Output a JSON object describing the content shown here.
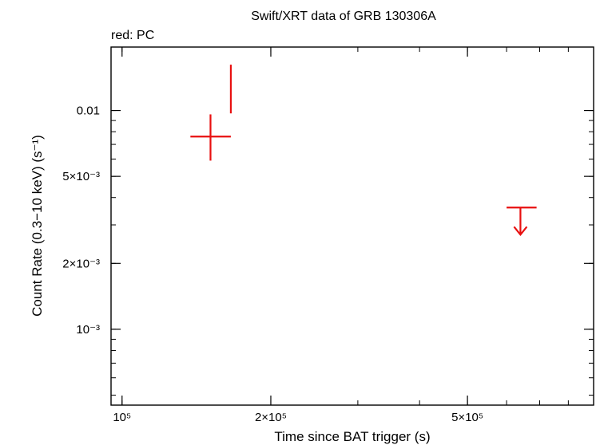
{
  "chart_data": {
    "type": "scatter",
    "title": "Swift/XRT data of GRB 130306A",
    "subtitle": "red: PC",
    "xlabel": "Time since BAT trigger (s)",
    "ylabel": "Count Rate (0.3−10 keV) (s⁻¹)",
    "x_scale": "log",
    "y_scale": "log",
    "xlim": [
      95000,
      900000
    ],
    "ylim": [
      0.00045,
      0.0195
    ],
    "x_ticks": [
      {
        "value": 100000,
        "label": "10⁵"
      },
      {
        "value": 200000,
        "label": "2×10⁵"
      },
      {
        "value": 500000,
        "label": "5×10⁵"
      }
    ],
    "y_ticks": [
      {
        "value": 0.001,
        "label": "10⁻³"
      },
      {
        "value": 0.002,
        "label": "2×10⁻³"
      },
      {
        "value": 0.005,
        "label": "5×10⁻³"
      },
      {
        "value": 0.01,
        "label": "0.01"
      }
    ],
    "series": [
      {
        "color": "#e81010",
        "points": [
          {
            "x": 151000,
            "y": 0.0076,
            "xerr": [
              137500,
              166000
            ],
            "yerr": [
              0.0059,
              0.0096
            ]
          },
          {
            "x": 166000,
            "y": 0.0123,
            "xerr": [
              165500,
              166500
            ],
            "yerr": [
              0.0097,
              0.0162
            ]
          }
        ],
        "upper_limits": [
          {
            "x": 640000,
            "y": 0.0036,
            "xerr": [
              600000,
              690000
            ]
          }
        ]
      }
    ],
    "grid": false
  }
}
